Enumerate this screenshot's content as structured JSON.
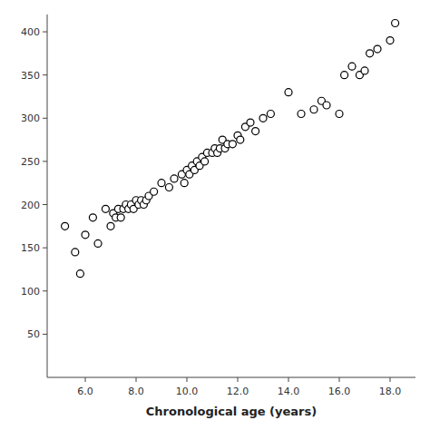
{
  "chart_data": {
    "type": "scatter",
    "xlabel": "Chronological age (years)",
    "x": [
      5.2,
      5.6,
      5.8,
      6.0,
      6.3,
      6.5,
      6.8,
      7.0,
      7.1,
      7.2,
      7.3,
      7.4,
      7.5,
      7.6,
      7.7,
      7.8,
      7.9,
      8.0,
      8.1,
      8.2,
      8.3,
      8.4,
      8.5,
      8.7,
      9.0,
      9.3,
      9.5,
      9.8,
      9.9,
      10.0,
      10.1,
      10.2,
      10.3,
      10.4,
      10.5,
      10.6,
      10.7,
      10.8,
      11.0,
      11.1,
      11.2,
      11.3,
      11.4,
      11.5,
      11.6,
      11.8,
      12.0,
      12.1,
      12.3,
      12.5,
      12.7,
      13.0,
      13.3,
      14.0,
      14.5,
      15.0,
      15.3,
      15.5,
      16.0,
      16.2,
      16.5,
      16.8,
      17.0,
      17.2,
      17.5,
      18.0,
      18.2
    ],
    "values": [
      175,
      145,
      120,
      165,
      185,
      155,
      195,
      175,
      190,
      185,
      195,
      185,
      195,
      200,
      195,
      200,
      195,
      205,
      200,
      205,
      200,
      205,
      210,
      215,
      225,
      220,
      230,
      235,
      225,
      240,
      235,
      245,
      240,
      250,
      245,
      255,
      250,
      260,
      260,
      265,
      260,
      265,
      275,
      265,
      270,
      270,
      280,
      275,
      290,
      295,
      285,
      300,
      305,
      330,
      305,
      310,
      320,
      315,
      305,
      350,
      360,
      350,
      355,
      375,
      380,
      390,
      410
    ],
    "xlim": [
      4.5,
      19.0
    ],
    "ylim": [
      0,
      420
    ],
    "xticks": [
      {
        "value": 6.0,
        "label": "6.0"
      },
      {
        "value": 8.0,
        "label": "8.0"
      },
      {
        "value": 10.0,
        "label": "10.0"
      },
      {
        "value": 12.0,
        "label": "12.0"
      },
      {
        "value": 14.0,
        "label": "14.0"
      },
      {
        "value": 16.0,
        "label": "16.0"
      },
      {
        "value": 18.0,
        "label": "18.0"
      }
    ],
    "yticks": [
      50,
      100,
      150,
      200,
      250,
      300,
      350,
      400
    ],
    "grid": false,
    "marker": "circle",
    "color": "black"
  }
}
